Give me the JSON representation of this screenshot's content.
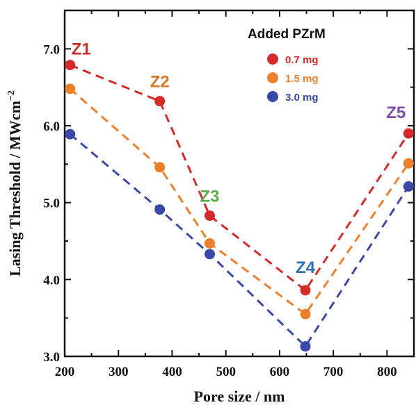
{
  "chart_data": {
    "type": "line",
    "xlabel": "Pore size / nm",
    "ylabel": "Lasing Threshold  / MWcm",
    "ylabel_superscript": "−2",
    "xlim": [
      200,
      850
    ],
    "ylim": [
      3.0,
      7.5
    ],
    "x_ticks": [
      200,
      300,
      400,
      500,
      600,
      700,
      800
    ],
    "x_tick_labels": [
      "200",
      "300",
      "400",
      "500",
      "600",
      "700",
      "800"
    ],
    "y_ticks": [
      3.0,
      4.0,
      5.0,
      6.0,
      7.0
    ],
    "y_tick_labels": [
      "3.0",
      "4.0",
      "5.0",
      "6.0",
      "7.0"
    ],
    "grid": false,
    "legend_title": "Added PZrM",
    "legend_position": "top-right",
    "x": [
      210,
      377,
      470,
      648,
      840
    ],
    "series": [
      {
        "name": "0.7 mg",
        "color": "#d42a2a",
        "values": [
          6.79,
          6.32,
          4.83,
          3.86,
          5.9
        ]
      },
      {
        "name": "1.5 mg",
        "color": "#ec7f2a",
        "values": [
          6.48,
          5.46,
          4.47,
          3.55,
          5.51
        ]
      },
      {
        "name": "3.0 mg",
        "color": "#3a48a8",
        "values": [
          5.89,
          4.91,
          4.33,
          3.13,
          5.21
        ]
      }
    ],
    "annotations": [
      {
        "text": "Z1",
        "x": 210,
        "y": 6.79,
        "color": "#c9302c"
      },
      {
        "text": "Z2",
        "x": 377,
        "y": 6.32,
        "color": "#d97a2a"
      },
      {
        "text": "Z3",
        "x": 470,
        "y": 4.83,
        "color": "#5fae4e"
      },
      {
        "text": "Z4",
        "x": 648,
        "y": 3.86,
        "color": "#2f6fb5"
      },
      {
        "text": "Z5",
        "x": 840,
        "y": 5.9,
        "color": "#7b4fa3"
      }
    ]
  }
}
